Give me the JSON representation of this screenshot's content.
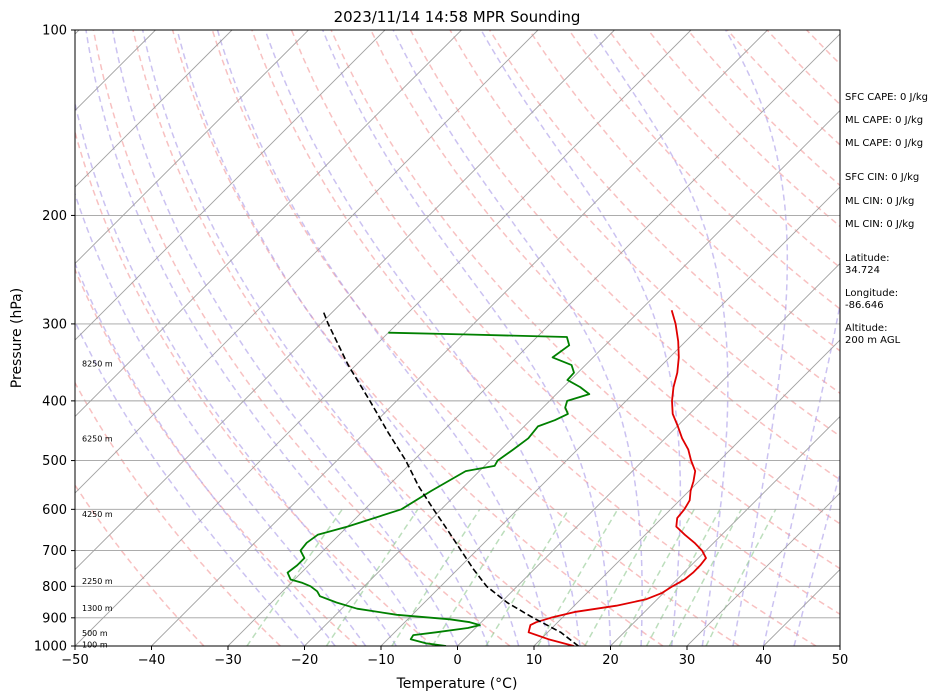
{
  "chart_data": {
    "type": "line",
    "title": "2023/11/14 14:58 MPR Sounding",
    "xlabel": "Temperature (°C)",
    "ylabel": "Pressure (hPa)",
    "xlim": [
      -50,
      50
    ],
    "ylim": [
      1000,
      100
    ],
    "y_scale": "log",
    "skew": "skew-T log-p diagram",
    "grid": true,
    "x_ticks": [
      -50,
      -40,
      -30,
      -20,
      -10,
      0,
      10,
      20,
      30,
      40,
      50
    ],
    "y_ticks": [
      1000,
      900,
      800,
      700,
      600,
      500,
      400,
      300,
      200,
      100
    ],
    "y_tick_labels": [
      "1000",
      "900",
      "800",
      "700",
      "600",
      "500",
      "400",
      "300",
      "200",
      "100"
    ],
    "series": [
      {
        "name": "",
        "role": "temperature",
        "color": "#e00000",
        "points": [
          [
            1000,
            15.2
          ],
          [
            975,
            11.0
          ],
          [
            950,
            7.5
          ],
          [
            925,
            6.8
          ],
          [
            915,
            7.2
          ],
          [
            900,
            8.5
          ],
          [
            880,
            11.0
          ],
          [
            860,
            15.5
          ],
          [
            840,
            18.5
          ],
          [
            820,
            19.8
          ],
          [
            800,
            20.3
          ],
          [
            780,
            21.0
          ],
          [
            760,
            21.2
          ],
          [
            740,
            21.2
          ],
          [
            720,
            21.0
          ],
          [
            700,
            19.5
          ],
          [
            680,
            17.5
          ],
          [
            660,
            15.2
          ],
          [
            640,
            13.0
          ],
          [
            620,
            12.0
          ],
          [
            600,
            11.8
          ],
          [
            580,
            11.3
          ],
          [
            560,
            10.2
          ],
          [
            540,
            9.3
          ],
          [
            520,
            8.2
          ],
          [
            500,
            6.3
          ],
          [
            480,
            4.5
          ],
          [
            460,
            2.2
          ],
          [
            440,
            0.1
          ],
          [
            420,
            -2.2
          ],
          [
            400,
            -4.0
          ],
          [
            380,
            -5.6
          ],
          [
            360,
            -7.0
          ],
          [
            340,
            -8.8
          ],
          [
            320,
            -11.0
          ],
          [
            300,
            -13.6
          ],
          [
            285,
            -15.9
          ]
        ]
      },
      {
        "name": "",
        "role": "dewpoint",
        "color": "#008000",
        "points": [
          [
            1000,
            -1.5
          ],
          [
            990,
            -4.5
          ],
          [
            975,
            -7.0
          ],
          [
            960,
            -7.2
          ],
          [
            950,
            -4.6
          ],
          [
            935,
            -1.0
          ],
          [
            925,
            0.2
          ],
          [
            915,
            -1.5
          ],
          [
            905,
            -4.5
          ],
          [
            890,
            -12.0
          ],
          [
            870,
            -18.0
          ],
          [
            850,
            -21.5
          ],
          [
            830,
            -24.5
          ],
          [
            815,
            -25.5
          ],
          [
            800,
            -27.0
          ],
          [
            790,
            -28.5
          ],
          [
            780,
            -30.5
          ],
          [
            760,
            -31.8
          ],
          [
            740,
            -31.5
          ],
          [
            720,
            -31.5
          ],
          [
            700,
            -33.0
          ],
          [
            680,
            -33.2
          ],
          [
            660,
            -32.8
          ],
          [
            640,
            -30.0
          ],
          [
            600,
            -25.2
          ],
          [
            560,
            -23.7
          ],
          [
            520,
            -21.8
          ],
          [
            510,
            -18.7
          ],
          [
            500,
            -19.0
          ],
          [
            480,
            -18.4
          ],
          [
            460,
            -17.9
          ],
          [
            440,
            -18.2
          ],
          [
            430,
            -16.8
          ],
          [
            420,
            -15.9
          ],
          [
            410,
            -17.1
          ],
          [
            400,
            -17.7
          ],
          [
            390,
            -15.7
          ],
          [
            380,
            -17.8
          ],
          [
            370,
            -20.4
          ],
          [
            360,
            -20.5
          ],
          [
            350,
            -21.8
          ],
          [
            340,
            -25.3
          ],
          [
            325,
            -24.7
          ],
          [
            315,
            -26.1
          ],
          [
            312,
            -40.0
          ],
          [
            310,
            -50.0
          ]
        ]
      },
      {
        "name": "",
        "role": "parcel profile",
        "color": "#000000",
        "dashed": true,
        "points": [
          [
            1000,
            15.8
          ],
          [
            950,
            11.7
          ],
          [
            900,
            6.2
          ],
          [
            850,
            0.8
          ],
          [
            800,
            -4.0
          ],
          [
            750,
            -8.0
          ],
          [
            700,
            -12.0
          ],
          [
            650,
            -16.3
          ],
          [
            600,
            -21.0
          ],
          [
            550,
            -26.0
          ],
          [
            500,
            -31.0
          ],
          [
            450,
            -37.0
          ],
          [
            400,
            -43.5
          ],
          [
            350,
            -51.0
          ],
          [
            300,
            -59.0
          ],
          [
            285,
            -61.5
          ]
        ]
      }
    ],
    "height_labels": [
      "100 m",
      "500 m",
      "1300 m",
      "2250 m",
      "4250 m",
      "6250 m",
      "8250 m"
    ],
    "height_label_pressures": [
      995,
      952,
      868,
      785,
      610,
      460,
      348
    ]
  },
  "stats": [
    "SFC CAPE: 0 J/kg",
    "ML CAPE: 0 J/kg",
    "ML CAPE: 0 J/kg",
    "SFC CIN: 0 J/kg",
    "ML CIN: 0 J/kg",
    "ML CIN: 0 J/kg",
    "Latitude:\n34.724",
    "Longitude:\n-86.646",
    "Altitude:\n200 m AGL"
  ],
  "colors": {
    "temperature": "#e00000",
    "dewpoint": "#008000",
    "parcel": "#000000",
    "dry_adiabat": "#f4a0a0",
    "moist_adiabat": "#a89ae8",
    "mixing_ratio": "#90c890",
    "isotherm": "#a0a0a0",
    "isobar": "#a0a0a0"
  }
}
